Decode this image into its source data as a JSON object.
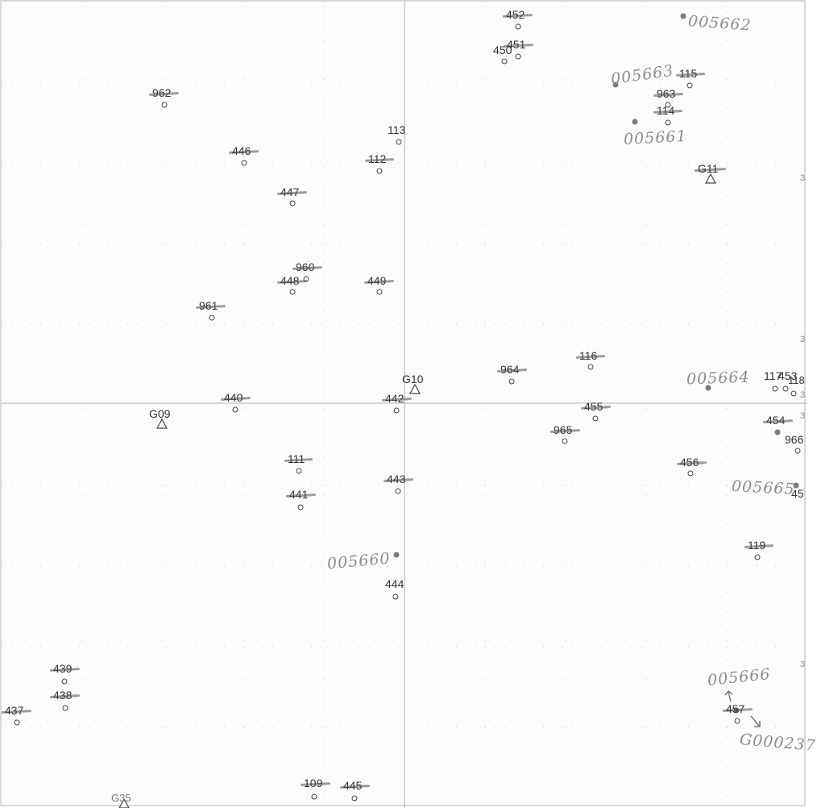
{
  "control_points": [
    {
      "id": "g11",
      "label": "G11",
      "struck": true
    },
    {
      "id": "g10",
      "label": "G10",
      "struck": false
    },
    {
      "id": "g09",
      "label": "G09",
      "struck": false
    },
    {
      "id": "g35",
      "label": "G35",
      "struck": false
    }
  ],
  "points": [
    {
      "id": "p452",
      "label": "452",
      "struck": true
    },
    {
      "id": "p451",
      "label": "451",
      "struck": true
    },
    {
      "id": "p450",
      "label": "450",
      "struck": false
    },
    {
      "id": "p962",
      "label": "962",
      "struck": true
    },
    {
      "id": "p115",
      "label": "115",
      "struck": true
    },
    {
      "id": "p963",
      "label": "963",
      "struck": true
    },
    {
      "id": "p114",
      "label": "114",
      "struck": true
    },
    {
      "id": "p113",
      "label": "113",
      "struck": false
    },
    {
      "id": "p112",
      "label": "112",
      "struck": true
    },
    {
      "id": "p446",
      "label": "446",
      "struck": true
    },
    {
      "id": "p447",
      "label": "447",
      "struck": true
    },
    {
      "id": "p960",
      "label": "960",
      "struck": true
    },
    {
      "id": "p448",
      "label": "448",
      "struck": true
    },
    {
      "id": "p449",
      "label": "449",
      "struck": true
    },
    {
      "id": "p961",
      "label": "961",
      "struck": true
    },
    {
      "id": "p116",
      "label": "116",
      "struck": true
    },
    {
      "id": "p964",
      "label": "964",
      "struck": true
    },
    {
      "id": "p440",
      "label": "440",
      "struck": true
    },
    {
      "id": "p442",
      "label": "442",
      "struck": true
    },
    {
      "id": "p455",
      "label": "455",
      "struck": true
    },
    {
      "id": "p965",
      "label": "965",
      "struck": true
    },
    {
      "id": "p454",
      "label": "454",
      "struck": true
    },
    {
      "id": "p966",
      "label": "966",
      "struck": false
    },
    {
      "id": "p111",
      "label": "111",
      "struck": true
    },
    {
      "id": "p456",
      "label": "456",
      "struck": true
    },
    {
      "id": "p443",
      "label": "443",
      "struck": true
    },
    {
      "id": "p441",
      "label": "441",
      "struck": true
    },
    {
      "id": "p45x",
      "label": "45",
      "struck": false
    },
    {
      "id": "p119",
      "label": "119",
      "struck": true
    },
    {
      "id": "p444",
      "label": "444",
      "struck": false
    },
    {
      "id": "p439",
      "label": "439",
      "struck": true
    },
    {
      "id": "p438",
      "label": "438",
      "struck": true
    },
    {
      "id": "p437",
      "label": "437",
      "struck": true
    },
    {
      "id": "p457",
      "label": "457",
      "struck": true
    },
    {
      "id": "p109",
      "label": "109",
      "struck": true
    },
    {
      "id": "p445",
      "label": "445",
      "struck": true
    },
    {
      "id": "p117a",
      "label": "117",
      "struck": false
    },
    {
      "id": "p453",
      "label": "453",
      "struck": false
    },
    {
      "id": "p118",
      "label": "118",
      "struck": false
    }
  ],
  "handwritten_labels": [
    {
      "id": "h005662",
      "text": "005662"
    },
    {
      "id": "h005663",
      "text": "005663"
    },
    {
      "id": "h005661",
      "text": "005661"
    },
    {
      "id": "h005664",
      "text": "005664"
    },
    {
      "id": "h005665",
      "text": "005665"
    },
    {
      "id": "h005660",
      "text": "005660"
    },
    {
      "id": "h005666",
      "text": "005666"
    },
    {
      "id": "hG000237",
      "text": "G000237"
    }
  ],
  "edge_marks": [
    {
      "id": "e1",
      "text": "3"
    },
    {
      "id": "e2",
      "text": "3"
    },
    {
      "id": "e3",
      "text": "3"
    },
    {
      "id": "e4",
      "text": "3"
    },
    {
      "id": "e5",
      "text": "3"
    }
  ],
  "colors": {
    "ink": "#333333",
    "pencil": "#8d8d8d",
    "grid": "#c9c9c9",
    "axis": "#b0b0b0"
  }
}
